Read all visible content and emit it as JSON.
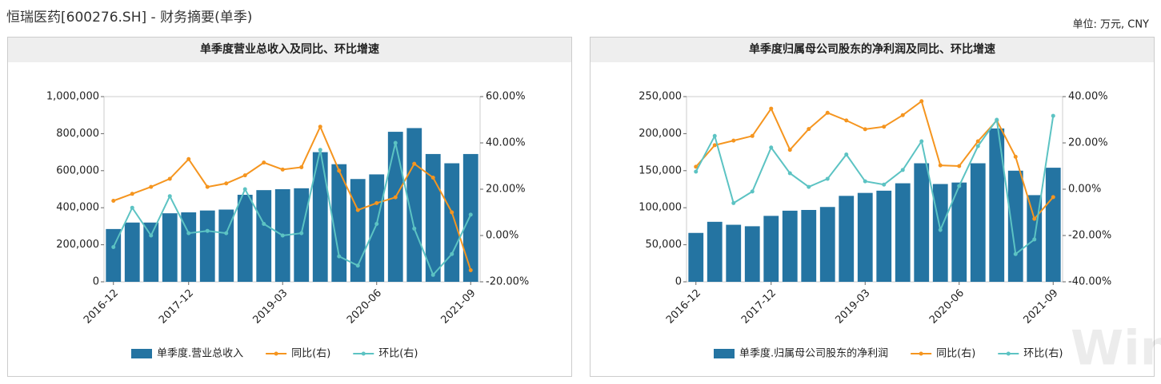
{
  "header": {
    "title": "恒瑞医药[600276.SH] - 财务摘要(单季)",
    "unit": "单位: 万元, CNY",
    "watermark": "Win.d"
  },
  "chart_data": [
    {
      "type": "bar",
      "title": "单季度营业总收入及同比、环比增速",
      "categories": [
        "2016-12",
        null,
        null,
        null,
        "2017-12",
        null,
        null,
        null,
        null,
        "2019-03",
        null,
        null,
        null,
        null,
        "2020-06",
        null,
        null,
        null,
        null,
        "2021-09"
      ],
      "series": [
        {
          "name": "单季度.营业总收入",
          "type": "bar",
          "color": "#2474a2",
          "values": [
            285000,
            320000,
            320000,
            370000,
            375000,
            385000,
            390000,
            470000,
            495000,
            500000,
            505000,
            700000,
            635000,
            555000,
            580000,
            810000,
            830000,
            690000,
            640000,
            690000
          ]
        },
        {
          "name": "同比(右)",
          "type": "line",
          "axis": "y2",
          "color": "#f5951f",
          "values": [
            15,
            18,
            21,
            24.5,
            33,
            21,
            22.5,
            26,
            31.5,
            28.5,
            29.5,
            47,
            28,
            11,
            14,
            16.5,
            31,
            25,
            10,
            -15
          ]
        },
        {
          "name": "环比(右)",
          "type": "line",
          "axis": "y2",
          "color": "#5cc3c3",
          "values": [
            -5,
            12,
            0,
            17,
            1,
            2,
            1,
            20,
            5,
            0,
            1,
            37,
            -9,
            -13,
            5,
            40,
            3,
            -17,
            -8,
            9
          ]
        }
      ],
      "ylim": [
        0,
        1000000
      ],
      "yticks": [
        0,
        {
          "value": 200000,
          "label": "200,000"
        },
        {
          "value": 400000,
          "label": "400,000"
        },
        {
          "value": 600000,
          "label": "600,000"
        },
        {
          "value": 800000,
          "label": "800,000"
        },
        {
          "value": 1000000,
          "label": "1,000,000"
        }
      ],
      "y2lim": [
        -20,
        60
      ],
      "y2ticks": [
        {
          "value": -20,
          "label": "-20.00%"
        },
        {
          "value": 0,
          "label": "0.00%"
        },
        {
          "value": 20,
          "label": "20.00%"
        },
        {
          "value": 40,
          "label": "40.00%"
        },
        {
          "value": 60,
          "label": "60.00%"
        }
      ]
    },
    {
      "type": "bar",
      "title": "单季度归属母公司股东的净利润及同比、环比增速",
      "categories": [
        "2016-12",
        null,
        null,
        null,
        "2017-12",
        null,
        null,
        null,
        null,
        "2019-03",
        null,
        null,
        null,
        null,
        "2020-06",
        null,
        null,
        null,
        null,
        "2021-09"
      ],
      "series": [
        {
          "name": "单季度.归属母公司股东的净利润",
          "type": "bar",
          "color": "#2474a2",
          "values": [
            66000,
            81000,
            77000,
            75000,
            89000,
            96000,
            97000,
            101000,
            116000,
            120000,
            123000,
            133000,
            160000,
            132000,
            134000,
            160000,
            207000,
            150000,
            117000,
            154000
          ]
        },
        {
          "name": "同比(右)",
          "type": "line",
          "axis": "y2",
          "color": "#f5951f",
          "values": [
            9.7,
            19,
            21,
            23,
            34.8,
            17,
            26,
            33,
            29.7,
            25.9,
            27,
            32,
            38,
            10.3,
            10,
            20.7,
            29.7,
            14,
            -12.8,
            -3.4
          ]
        },
        {
          "name": "环比(右)",
          "type": "line",
          "axis": "y2",
          "color": "#5cc3c3",
          "values": [
            7.6,
            23,
            -6,
            -1,
            18,
            6.9,
            1,
            4.5,
            15,
            3.4,
            2,
            8.3,
            20.7,
            -17.6,
            1.4,
            18.6,
            30,
            -28,
            -21.7,
            31.7
          ]
        }
      ],
      "ylim": [
        0,
        250000
      ],
      "yticks": [
        0,
        {
          "value": 50000,
          "label": "50,000"
        },
        {
          "value": 100000,
          "label": "100,000"
        },
        {
          "value": 150000,
          "label": "150,000"
        },
        {
          "value": 200000,
          "label": "200,000"
        },
        {
          "value": 250000,
          "label": "250,000"
        }
      ],
      "y2lim": [
        -40,
        40
      ],
      "y2ticks": [
        {
          "value": -40,
          "label": "-40.00%"
        },
        {
          "value": -20,
          "label": "-20.00%"
        },
        {
          "value": 0,
          "label": "0.00%"
        },
        {
          "value": 20,
          "label": "20.00%"
        },
        {
          "value": 40,
          "label": "40.00%"
        }
      ]
    }
  ]
}
